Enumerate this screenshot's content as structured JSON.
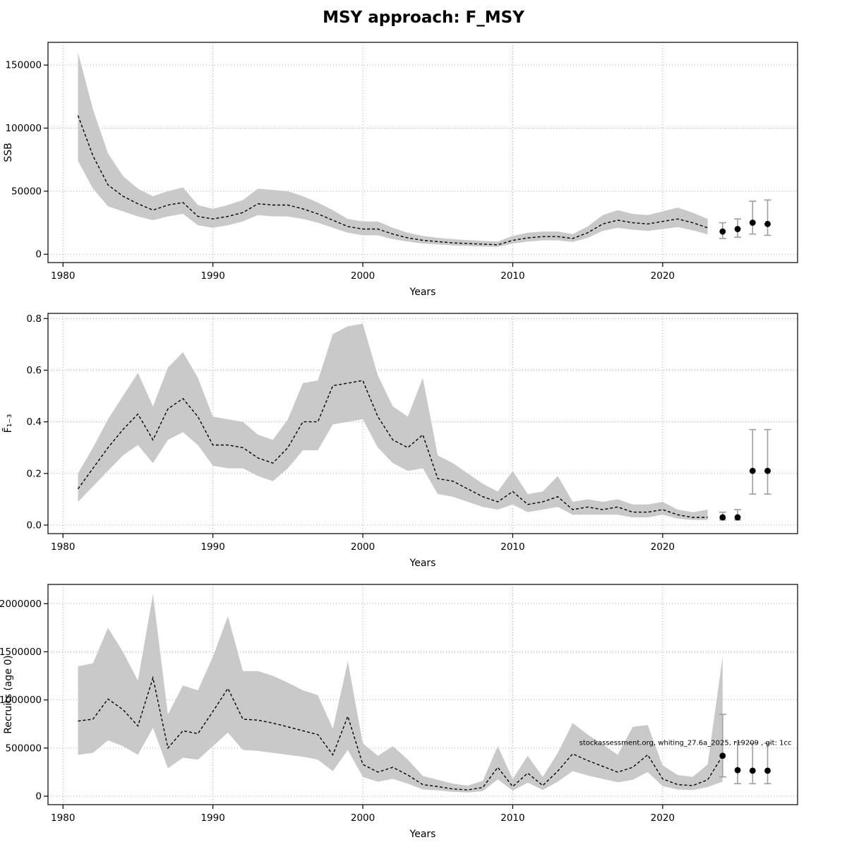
{
  "page": {
    "title": "MSY approach: F_MSY"
  },
  "colors": {
    "band": "#c9c9c9",
    "line": "#000000",
    "errorbar": "#a3a3a3",
    "grid": "#aaaaaa",
    "border": "#000000",
    "background": "#ffffff"
  },
  "chart_data": [
    {
      "type": "line",
      "name": "ssb",
      "xlabel": "Years",
      "ylabel": "SSB",
      "xlim": [
        1979,
        2029
      ],
      "ylim": [
        -6600,
        168000
      ],
      "xticks": [
        1980,
        1990,
        2000,
        2010,
        2020
      ],
      "xtick_labels": [
        "1980",
        "1990",
        "2000",
        "2010",
        "2020"
      ],
      "yticks": [
        0,
        50000,
        100000,
        150000
      ],
      "ytick_labels": [
        "0",
        "50000",
        "100000",
        "150000"
      ],
      "years": [
        1981,
        1982,
        1983,
        1984,
        1985,
        1986,
        1987,
        1988,
        1989,
        1990,
        1991,
        1992,
        1993,
        1994,
        1995,
        1996,
        1997,
        1998,
        1999,
        2000,
        2001,
        2002,
        2003,
        2004,
        2005,
        2006,
        2007,
        2008,
        2009,
        2010,
        2011,
        2012,
        2013,
        2014,
        2015,
        2016,
        2017,
        2018,
        2019,
        2020,
        2021,
        2022,
        2023
      ],
      "values": [
        110000,
        78000,
        55000,
        46000,
        40000,
        35000,
        39000,
        41000,
        30000,
        28000,
        30000,
        33000,
        40000,
        39000,
        39000,
        36000,
        32000,
        27000,
        22000,
        20000,
        20000,
        16000,
        13000,
        11000,
        10000,
        9000,
        8500,
        8000,
        7500,
        11000,
        13000,
        14000,
        14000,
        12500,
        17000,
        24000,
        27000,
        25000,
        24000,
        26000,
        28000,
        25000,
        21000
      ],
      "band_hi": [
        160000,
        115000,
        80000,
        62000,
        52000,
        46000,
        50000,
        53000,
        39000,
        36000,
        39000,
        43000,
        52000,
        51000,
        50000,
        46000,
        41000,
        35000,
        28000,
        26000,
        26000,
        21000,
        17000,
        14500,
        13000,
        12000,
        11200,
        10500,
        10000,
        14500,
        17000,
        18000,
        18000,
        16000,
        22000,
        31000,
        35000,
        32000,
        31000,
        34000,
        37000,
        33000,
        28000
      ],
      "band_lo": [
        74000,
        52000,
        38000,
        34000,
        30000,
        27000,
        30000,
        32000,
        23000,
        21000,
        23000,
        26000,
        31000,
        30000,
        30000,
        28000,
        25000,
        21000,
        17000,
        15000,
        15000,
        12000,
        10000,
        8500,
        7800,
        7000,
        6600,
        6100,
        5800,
        8500,
        10000,
        11000,
        11000,
        9800,
        13000,
        18500,
        21000,
        19500,
        18500,
        20000,
        21500,
        19000,
        15800
      ],
      "forecast": {
        "years": [
          2024,
          2025,
          2026,
          2027
        ],
        "values": [
          18000,
          20000,
          25000,
          24000
        ],
        "lo": [
          12500,
          13500,
          16000,
          15000
        ],
        "hi": [
          25000,
          28000,
          42000,
          43000
        ]
      },
      "annotation": null
    },
    {
      "type": "line",
      "name": "fbar",
      "xlabel": "Years",
      "ylabel": "F̄₁₋₃",
      "xlim": [
        1979,
        2029
      ],
      "ylim": [
        -0.033,
        0.82
      ],
      "xticks": [
        1980,
        1990,
        2000,
        2010,
        2020
      ],
      "xtick_labels": [
        "1980",
        "1990",
        "2000",
        "2010",
        "2020"
      ],
      "yticks": [
        0.0,
        0.2,
        0.4,
        0.6,
        0.8
      ],
      "ytick_labels": [
        "0.0",
        "0.2",
        "0.4",
        "0.6",
        "0.8"
      ],
      "years": [
        1981,
        1982,
        1983,
        1984,
        1985,
        1986,
        1987,
        1988,
        1989,
        1990,
        1991,
        1992,
        1993,
        1994,
        1995,
        1996,
        1997,
        1998,
        1999,
        2000,
        2001,
        2002,
        2003,
        2004,
        2005,
        2006,
        2007,
        2008,
        2009,
        2010,
        2011,
        2012,
        2013,
        2014,
        2015,
        2016,
        2017,
        2018,
        2019,
        2020,
        2021,
        2022,
        2023
      ],
      "values": [
        0.14,
        0.22,
        0.3,
        0.37,
        0.43,
        0.33,
        0.45,
        0.49,
        0.42,
        0.31,
        0.31,
        0.3,
        0.26,
        0.24,
        0.3,
        0.4,
        0.4,
        0.54,
        0.55,
        0.56,
        0.42,
        0.33,
        0.3,
        0.35,
        0.18,
        0.17,
        0.14,
        0.11,
        0.09,
        0.13,
        0.08,
        0.09,
        0.11,
        0.06,
        0.07,
        0.06,
        0.07,
        0.05,
        0.05,
        0.06,
        0.04,
        0.03,
        0.03
      ],
      "band_hi": [
        0.2,
        0.3,
        0.41,
        0.5,
        0.59,
        0.46,
        0.61,
        0.67,
        0.57,
        0.42,
        0.41,
        0.4,
        0.35,
        0.33,
        0.41,
        0.55,
        0.56,
        0.74,
        0.77,
        0.78,
        0.58,
        0.46,
        0.42,
        0.57,
        0.27,
        0.24,
        0.2,
        0.16,
        0.13,
        0.21,
        0.12,
        0.13,
        0.19,
        0.09,
        0.1,
        0.09,
        0.1,
        0.08,
        0.08,
        0.09,
        0.06,
        0.05,
        0.06
      ],
      "band_lo": [
        0.09,
        0.15,
        0.21,
        0.27,
        0.31,
        0.24,
        0.33,
        0.36,
        0.31,
        0.23,
        0.22,
        0.22,
        0.19,
        0.17,
        0.22,
        0.29,
        0.29,
        0.39,
        0.4,
        0.41,
        0.3,
        0.24,
        0.21,
        0.22,
        0.12,
        0.11,
        0.09,
        0.07,
        0.06,
        0.08,
        0.05,
        0.06,
        0.07,
        0.04,
        0.04,
        0.04,
        0.04,
        0.03,
        0.03,
        0.04,
        0.025,
        0.02,
        0.02
      ],
      "forecast": {
        "years": [
          2024,
          2025,
          2026,
          2027
        ],
        "values": [
          0.03,
          0.03,
          0.21,
          0.21
        ],
        "lo": [
          0.02,
          0.02,
          0.12,
          0.12
        ],
        "hi": [
          0.05,
          0.06,
          0.37,
          0.37
        ]
      },
      "annotation": null
    },
    {
      "type": "line",
      "name": "recruits",
      "xlabel": "Years",
      "ylabel": "Recruits (age 0)",
      "xlim": [
        1979,
        2029
      ],
      "ylim": [
        -88000,
        2200000
      ],
      "xticks": [
        1980,
        1990,
        2000,
        2010,
        2020
      ],
      "xtick_labels": [
        "1980",
        "1990",
        "2000",
        "2010",
        "2020"
      ],
      "yticks": [
        0,
        500000,
        1000000,
        1500000,
        2000000
      ],
      "ytick_labels": [
        "0",
        "500000",
        "1000000",
        "1500000",
        "2000000"
      ],
      "years": [
        1981,
        1982,
        1983,
        1984,
        1985,
        1986,
        1987,
        1988,
        1989,
        1990,
        1991,
        1992,
        1993,
        1994,
        1995,
        1996,
        1997,
        1998,
        1999,
        2000,
        2001,
        2002,
        2003,
        2004,
        2005,
        2006,
        2007,
        2008,
        2009,
        2010,
        2011,
        2012,
        2013,
        2014,
        2015,
        2016,
        2017,
        2018,
        2019,
        2020,
        2021,
        2022,
        2023,
        2024
      ],
      "values": [
        780000,
        800000,
        1010000,
        900000,
        730000,
        1230000,
        500000,
        680000,
        650000,
        880000,
        1120000,
        800000,
        790000,
        760000,
        720000,
        680000,
        640000,
        430000,
        830000,
        330000,
        250000,
        300000,
        220000,
        120000,
        100000,
        75000,
        65000,
        90000,
        300000,
        100000,
        240000,
        110000,
        260000,
        440000,
        370000,
        310000,
        250000,
        300000,
        430000,
        180000,
        120000,
        110000,
        170000,
        420000
      ],
      "band_hi": [
        1350000,
        1380000,
        1750000,
        1500000,
        1200000,
        2100000,
        850000,
        1150000,
        1100000,
        1450000,
        1870000,
        1300000,
        1300000,
        1250000,
        1180000,
        1100000,
        1050000,
        700000,
        1400000,
        550000,
        420000,
        520000,
        380000,
        210000,
        170000,
        130000,
        110000,
        160000,
        520000,
        180000,
        420000,
        200000,
        450000,
        760000,
        640000,
        540000,
        430000,
        720000,
        740000,
        320000,
        220000,
        200000,
        330000,
        1450000
      ],
      "band_lo": [
        430000,
        450000,
        580000,
        520000,
        430000,
        710000,
        290000,
        400000,
        380000,
        520000,
        660000,
        480000,
        470000,
        450000,
        430000,
        410000,
        380000,
        260000,
        480000,
        200000,
        150000,
        180000,
        130000,
        70000,
        60000,
        45000,
        38000,
        52000,
        175000,
        58000,
        140000,
        65000,
        150000,
        260000,
        215000,
        180000,
        145000,
        170000,
        250000,
        105000,
        70000,
        63000,
        95000,
        150000
      ],
      "forecast": {
        "years": [
          2024,
          2025,
          2026,
          2027
        ],
        "values": [
          420000,
          270000,
          265000,
          265000
        ],
        "lo": [
          200000,
          130000,
          130000,
          130000
        ],
        "hi": [
          850000,
          560000,
          550000,
          550000
        ]
      },
      "annotation": {
        "text": "stockassessment.org, whiting_27.6a_2025, r19209 , git: 1cc",
        "x": 2028.6,
        "y": 530000,
        "anchor": "end"
      }
    }
  ]
}
